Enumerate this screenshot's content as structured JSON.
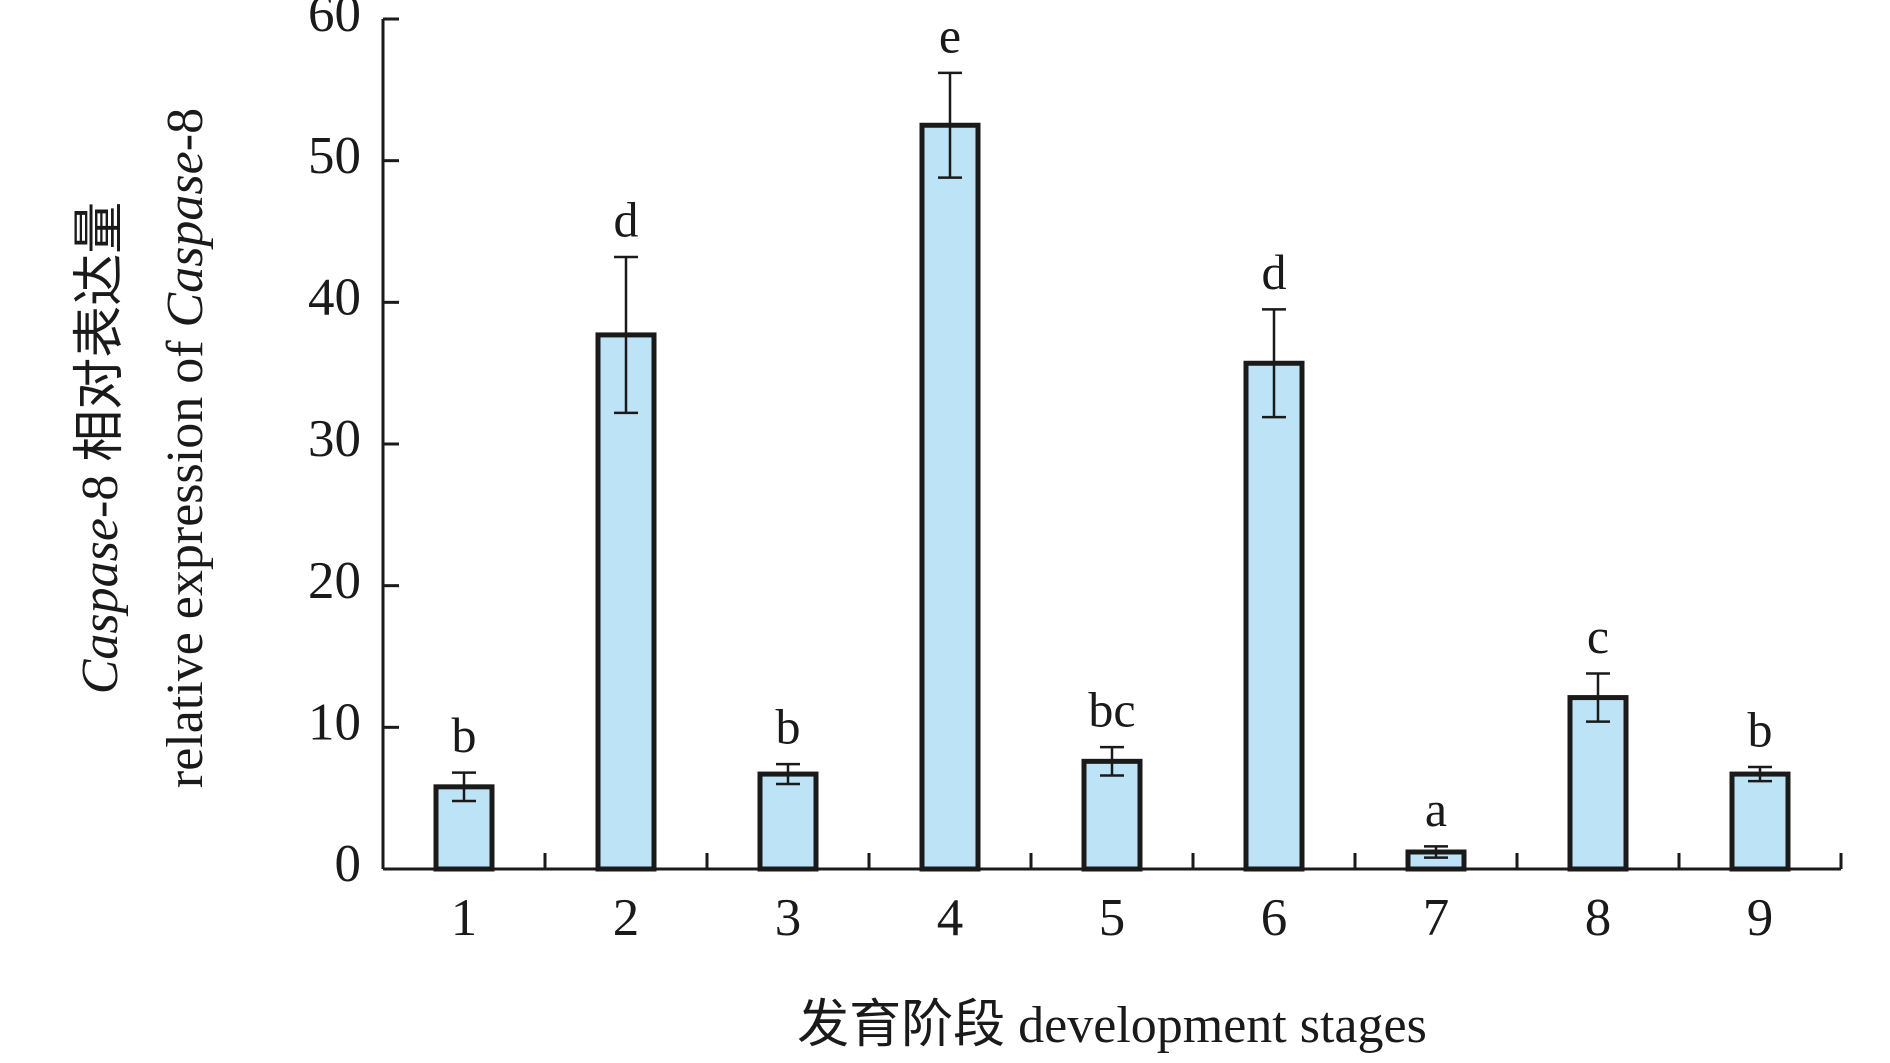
{
  "chart_data": {
    "type": "bar",
    "categories": [
      "1",
      "2",
      "3",
      "4",
      "5",
      "6",
      "7",
      "8",
      "9"
    ],
    "values": [
      5.8,
      37.7,
      6.7,
      52.5,
      7.6,
      35.7,
      1.2,
      12.1,
      6.7
    ],
    "errors": [
      1.0,
      5.5,
      0.7,
      3.7,
      1.0,
      3.8,
      0.4,
      1.7,
      0.5
    ],
    "annotations": [
      "b",
      "d",
      "b",
      "e",
      "bc",
      "d",
      "a",
      "c",
      "b"
    ],
    "color": "#bde3f7",
    "edge_color": "#1a1a1a",
    "ylim": [
      0,
      60
    ],
    "yticks": [
      0,
      10,
      20,
      30,
      40,
      50,
      60
    ],
    "grid": false,
    "xlabel": "发育阶段 development stages",
    "ylabel": [
      [
        {
          "text": "Caspase",
          "italic": true
        },
        {
          "text": "-8 相对表达量",
          "italic": false
        }
      ],
      [
        {
          "text": "relative expression of ",
          "italic": false
        },
        {
          "text": "Caspase",
          "italic": true
        },
        {
          "text": "-8",
          "italic": false
        }
      ]
    ]
  }
}
